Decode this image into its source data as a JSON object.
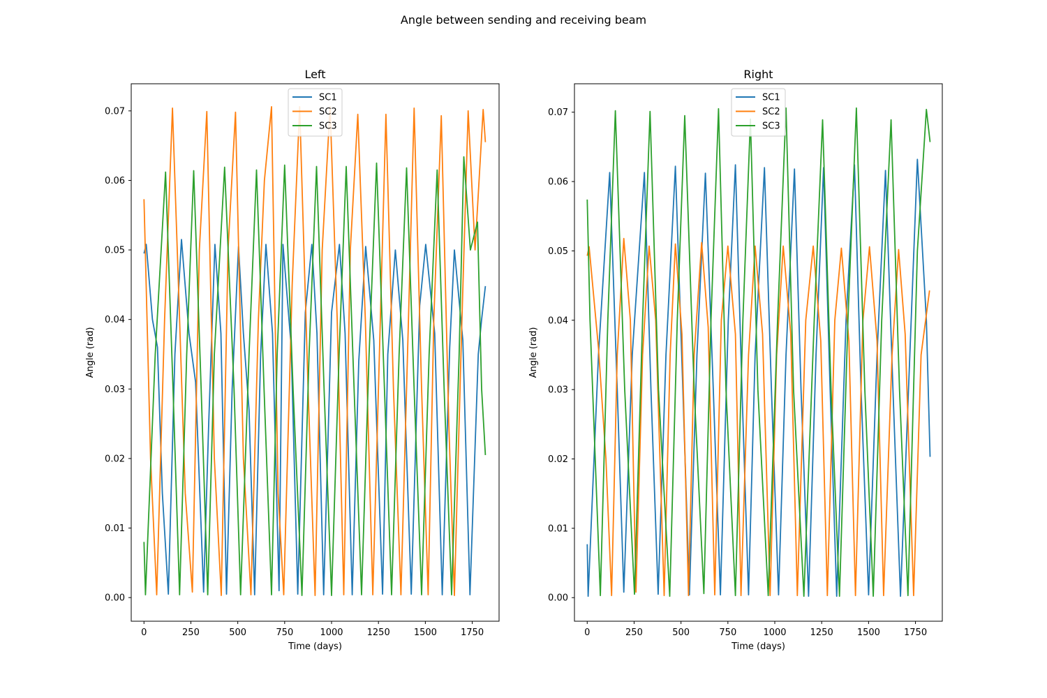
{
  "figure": {
    "suptitle": "Angle between sending and receiving beam"
  },
  "colors": {
    "SC1": "#1f77b4",
    "SC2": "#ff7f0e",
    "SC3": "#2ca02c"
  },
  "chart_data": [
    {
      "type": "line",
      "title": "Left",
      "xlabel": "Time (days)",
      "ylabel": "Angle (rad)",
      "xlim": [
        -68,
        1893
      ],
      "ylim": [
        -0.0034,
        0.0739
      ],
      "xticks": [
        0,
        250,
        500,
        750,
        1000,
        1250,
        1500,
        1750
      ],
      "yticks": [
        0.0,
        0.01,
        0.02,
        0.03,
        0.04,
        0.05,
        0.06,
        0.07
      ],
      "ytick_labels": [
        "0.00",
        "0.01",
        "0.02",
        "0.03",
        "0.04",
        "0.05",
        "0.06",
        "0.07"
      ],
      "legend": {
        "position": "upper-center",
        "entries": [
          "SC1",
          "SC2",
          "SC3"
        ]
      },
      "grid": false,
      "series": [
        {
          "name": "SC1",
          "color": "#1f77b4",
          "x": [
            0,
            12,
            45,
            72,
            98,
            130,
            165,
            200,
            240,
            275,
            318,
            345,
            378,
            410,
            440,
            470,
            504,
            530,
            560,
            590,
            622,
            650,
            685,
            720,
            741,
            785,
            820,
            860,
            895,
            922,
            958,
            1000,
            1042,
            1072,
            1110,
            1145,
            1182,
            1225,
            1272,
            1300,
            1340,
            1380,
            1425,
            1470,
            1502,
            1550,
            1590,
            1630,
            1655,
            1700,
            1738,
            1782,
            1800,
            1820
          ],
          "y": [
            0.0495,
            0.0508,
            0.04,
            0.036,
            0.015,
            0.0005,
            0.035,
            0.0515,
            0.038,
            0.031,
            0.0008,
            0.025,
            0.0508,
            0.038,
            0.0005,
            0.03,
            0.0505,
            0.038,
            0.027,
            0.0004,
            0.035,
            0.0508,
            0.038,
            0.001,
            0.0508,
            0.036,
            0.0005,
            0.041,
            0.0508,
            0.038,
            0.0004,
            0.041,
            0.0508,
            0.038,
            0.0004,
            0.034,
            0.0505,
            0.037,
            0.0005,
            0.035,
            0.05,
            0.037,
            0.0005,
            0.042,
            0.0508,
            0.038,
            0.0004,
            0.036,
            0.05,
            0.037,
            0.0004,
            0.035,
            0.04,
            0.0448
          ]
        },
        {
          "name": "SC2",
          "color": "#ff7f0e",
          "x": [
            0,
            35,
            68,
            110,
            152,
            190,
            220,
            258,
            295,
            335,
            375,
            412,
            448,
            488,
            530,
            570,
            610,
            642,
            680,
            715,
            745,
            790,
            830,
            875,
            912,
            950,
            992,
            1030,
            1065,
            1100,
            1140,
            1180,
            1220,
            1260,
            1290,
            1330,
            1370,
            1410,
            1440,
            1480,
            1515,
            1545,
            1585,
            1625,
            1655,
            1695,
            1728,
            1765,
            1808,
            1820
          ],
          "y": [
            0.0573,
            0.02,
            0.0004,
            0.04,
            0.0704,
            0.04,
            0.015,
            0.0008,
            0.05,
            0.0699,
            0.02,
            0.0003,
            0.05,
            0.0698,
            0.02,
            0.0004,
            0.04,
            0.06,
            0.0706,
            0.015,
            0.0004,
            0.045,
            0.0706,
            0.03,
            0.0003,
            0.05,
            0.0706,
            0.04,
            0.0004,
            0.05,
            0.0695,
            0.04,
            0.0004,
            0.04,
            0.0695,
            0.03,
            0.0004,
            0.04,
            0.0704,
            0.03,
            0.0004,
            0.04,
            0.0693,
            0.025,
            0.0003,
            0.04,
            0.07,
            0.05,
            0.0702,
            0.0655
          ]
        },
        {
          "name": "SC3",
          "color": "#2ca02c",
          "x": [
            0,
            8,
            60,
            115,
            155,
            190,
            228,
            265,
            305,
            340,
            375,
            430,
            480,
            515,
            560,
            600,
            640,
            680,
            710,
            750,
            795,
            842,
            880,
            920,
            960,
            1000,
            1040,
            1078,
            1120,
            1160,
            1200,
            1240,
            1282,
            1320,
            1360,
            1400,
            1440,
            1480,
            1520,
            1563,
            1600,
            1640,
            1680,
            1705,
            1740,
            1778,
            1800,
            1820
          ],
          "y": [
            0.008,
            0.0004,
            0.035,
            0.0612,
            0.03,
            0.0004,
            0.035,
            0.0614,
            0.03,
            0.0004,
            0.035,
            0.0619,
            0.03,
            0.0004,
            0.035,
            0.0615,
            0.03,
            0.0004,
            0.035,
            0.0622,
            0.03,
            0.0003,
            0.035,
            0.062,
            0.03,
            0.0003,
            0.035,
            0.062,
            0.03,
            0.0004,
            0.035,
            0.0625,
            0.03,
            0.0004,
            0.035,
            0.0618,
            0.03,
            0.0004,
            0.035,
            0.0615,
            0.03,
            0.0004,
            0.035,
            0.0634,
            0.05,
            0.054,
            0.03,
            0.0205
          ]
        }
      ]
    },
    {
      "type": "line",
      "title": "Right",
      "xlabel": "Time (days)",
      "ylabel": "Angle (rad)",
      "xlim": [
        -68,
        1893
      ],
      "ylim": [
        -0.0034,
        0.0741
      ],
      "xticks": [
        0,
        250,
        500,
        750,
        1000,
        1250,
        1500,
        1750
      ],
      "yticks": [
        0.0,
        0.01,
        0.02,
        0.03,
        0.04,
        0.05,
        0.06,
        0.07
      ],
      "ytick_labels": [
        "0.00",
        "0.01",
        "0.02",
        "0.03",
        "0.04",
        "0.05",
        "0.06",
        "0.07"
      ],
      "legend": {
        "position": "upper-center",
        "entries": [
          "SC1",
          "SC2",
          "SC3"
        ]
      },
      "grid": false,
      "series": [
        {
          "name": "SC1",
          "color": "#1f77b4",
          "x": [
            0,
            5,
            60,
            120,
            160,
            195,
            240,
            305,
            340,
            378,
            420,
            470,
            510,
            545,
            585,
            630,
            672,
            710,
            752,
            790,
            825,
            860,
            895,
            945,
            982,
            1020,
            1060,
            1105,
            1140,
            1180,
            1220,
            1260,
            1295,
            1330,
            1380,
            1425,
            1460,
            1500,
            1545,
            1590,
            1630,
            1670,
            1720,
            1760,
            1808,
            1828
          ],
          "y": [
            0.0077,
            0.0002,
            0.035,
            0.0613,
            0.03,
            0.0008,
            0.035,
            0.0613,
            0.03,
            0.0005,
            0.035,
            0.0622,
            0.03,
            0.0004,
            0.035,
            0.0612,
            0.03,
            0.0004,
            0.04,
            0.0624,
            0.03,
            0.0004,
            0.035,
            0.062,
            0.03,
            0.0004,
            0.035,
            0.0618,
            0.03,
            0.0002,
            0.035,
            0.062,
            0.03,
            0.0002,
            0.04,
            0.0624,
            0.03,
            0.0004,
            0.035,
            0.0616,
            0.03,
            0.0002,
            0.035,
            0.0632,
            0.04,
            0.0203
          ]
        },
        {
          "name": "SC2",
          "color": "#ff7f0e",
          "x": [
            0,
            10,
            60,
            100,
            130,
            160,
            195,
            230,
            260,
            295,
            330,
            365,
            410,
            442,
            470,
            505,
            540,
            570,
            610,
            645,
            680,
            715,
            750,
            790,
            820,
            860,
            895,
            935,
            975,
            1010,
            1045,
            1085,
            1120,
            1165,
            1205,
            1245,
            1280,
            1320,
            1355,
            1395,
            1430,
            1470,
            1505,
            1545,
            1580,
            1625,
            1660,
            1695,
            1740,
            1780,
            1825
          ],
          "y": [
            0.0493,
            0.0506,
            0.036,
            0.02,
            0.0003,
            0.035,
            0.0518,
            0.04,
            0.0008,
            0.035,
            0.0507,
            0.04,
            0.0003,
            0.035,
            0.051,
            0.038,
            0.0003,
            0.035,
            0.0512,
            0.039,
            0.0004,
            0.04,
            0.0507,
            0.038,
            0.0003,
            0.035,
            0.0507,
            0.038,
            0.0003,
            0.035,
            0.0507,
            0.038,
            0.0003,
            0.04,
            0.0507,
            0.037,
            0.0003,
            0.04,
            0.0504,
            0.037,
            0.0003,
            0.04,
            0.0506,
            0.037,
            0.0003,
            0.035,
            0.0502,
            0.038,
            0.0003,
            0.035,
            0.0443
          ]
        },
        {
          "name": "SC3",
          "color": "#2ca02c",
          "x": [
            0,
            15,
            70,
            110,
            150,
            200,
            252,
            295,
            335,
            380,
            440,
            480,
            520,
            570,
            622,
            660,
            700,
            740,
            790,
            830,
            870,
            910,
            965,
            1015,
            1060,
            1100,
            1155,
            1210,
            1255,
            1300,
            1345,
            1390,
            1435,
            1480,
            1525,
            1570,
            1620,
            1665,
            1710,
            1760,
            1808,
            1828
          ],
          "y": [
            0.0574,
            0.04,
            0.0003,
            0.04,
            0.0702,
            0.03,
            0.0005,
            0.04,
            0.0701,
            0.03,
            0.0002,
            0.04,
            0.0695,
            0.03,
            0.0006,
            0.04,
            0.0705,
            0.03,
            0.0003,
            0.04,
            0.069,
            0.03,
            0.0003,
            0.04,
            0.0706,
            0.03,
            0.0002,
            0.04,
            0.0689,
            0.03,
            0.0002,
            0.04,
            0.0706,
            0.03,
            0.0002,
            0.04,
            0.0689,
            0.03,
            0.0003,
            0.05,
            0.0704,
            0.0657
          ]
        }
      ]
    }
  ]
}
